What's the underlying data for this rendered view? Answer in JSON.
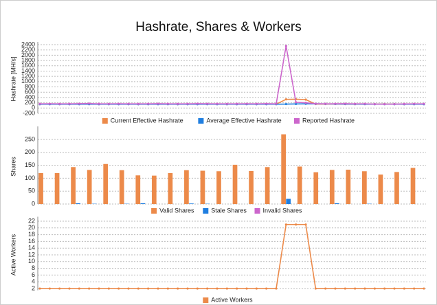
{
  "title": "Hashrate, Shares & Workers",
  "chart_data": [
    {
      "type": "line",
      "ylabel": "Hashrate [MH/s]",
      "ylim": [
        -200,
        2400
      ],
      "yticks": [
        -200,
        0,
        200,
        400,
        600,
        800,
        1000,
        1200,
        1400,
        1600,
        1800,
        2000,
        2200,
        2400
      ],
      "grid": true,
      "series": [
        {
          "name": "Current Effective Hashrate",
          "color": "#ec8a4a",
          "values": [
            150,
            152,
            148,
            150,
            155,
            150,
            148,
            152,
            150,
            150,
            148,
            150,
            152,
            150,
            148,
            150,
            150,
            152,
            150,
            148,
            150,
            152,
            150,
            150,
            150,
            330,
            335,
            320,
            150,
            150,
            152,
            150,
            148,
            150,
            150,
            152,
            150,
            148,
            150,
            150
          ]
        },
        {
          "name": "Average Effective Hashrate",
          "color": "#1f7ee0",
          "values": [
            145,
            145,
            146,
            145,
            145,
            146,
            145,
            145,
            145,
            146,
            145,
            145,
            145,
            146,
            145,
            145,
            145,
            146,
            145,
            145,
            145,
            146,
            145,
            145,
            145,
            150,
            155,
            160,
            158,
            155,
            152,
            150,
            148,
            147,
            146,
            146,
            145,
            145,
            145,
            145
          ]
        },
        {
          "name": "Reported Hashrate",
          "color": "#cc66cc",
          "values": [
            160,
            162,
            158,
            160,
            165,
            170,
            160,
            158,
            162,
            160,
            158,
            160,
            165,
            160,
            158,
            160,
            165,
            162,
            160,
            158,
            160,
            162,
            160,
            165,
            160,
            2350,
            220,
            200,
            165,
            160,
            162,
            165,
            158,
            160,
            150,
            148,
            150,
            155,
            160,
            160
          ]
        }
      ]
    },
    {
      "type": "bar",
      "ylabel": "Shares",
      "ylim": [
        0,
        290
      ],
      "yticks": [
        0,
        50,
        100,
        150,
        200,
        250
      ],
      "grid": true,
      "series": [
        {
          "name": "Valid Shares",
          "color": "#ec8a4a",
          "values": [
            120,
            120,
            143,
            132,
            155,
            131,
            111,
            110,
            120,
            131,
            129,
            127,
            152,
            128,
            143,
            270,
            145,
            123,
            132,
            133,
            127,
            114,
            124,
            140
          ]
        },
        {
          "name": "Stale Shares",
          "color": "#1f7ee0",
          "values": [
            0,
            0,
            3,
            1,
            0,
            1,
            3,
            0,
            0,
            2,
            1,
            0,
            0,
            0,
            0,
            20,
            0,
            0,
            3,
            0,
            1,
            0,
            0,
            0
          ]
        },
        {
          "name": "Invalid Shares",
          "color": "#cc66cc",
          "values": [
            0,
            0,
            0,
            0,
            0,
            0,
            0,
            0,
            0,
            0,
            0,
            0,
            0,
            0,
            0,
            0,
            0,
            0,
            0,
            0,
            0,
            0,
            0,
            0
          ]
        }
      ]
    },
    {
      "type": "line",
      "ylabel": "Active Workers",
      "ylim": [
        1.5,
        22.5
      ],
      "yticks": [
        2,
        4,
        6,
        8,
        10,
        12,
        14,
        16,
        18,
        20,
        22
      ],
      "grid": true,
      "series": [
        {
          "name": "Active Workers",
          "color": "#ec8a4a",
          "values": [
            2,
            2,
            2,
            2,
            2,
            2,
            2,
            2,
            2,
            2,
            2,
            2,
            2,
            2,
            2,
            2,
            2,
            2,
            2,
            2,
            2,
            2,
            2,
            2,
            2,
            21,
            21,
            21,
            2,
            2,
            2,
            2,
            2,
            2,
            2,
            2,
            2,
            2,
            2,
            2
          ]
        }
      ]
    }
  ]
}
